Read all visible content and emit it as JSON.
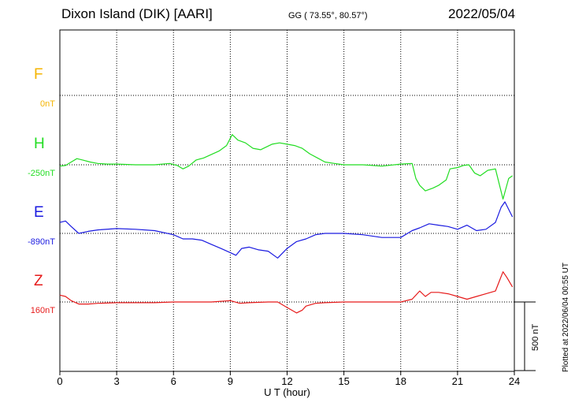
{
  "header": {
    "station": "Dixon Island (DIK)  [AARI]",
    "coords": "GG ( 73.55°,  80.57°)",
    "date": "2022/05/04"
  },
  "footer": {
    "plotted": "Plotted at 2022/06/04 00:55 UT"
  },
  "chart_data": {
    "type": "line",
    "xlabel": "U T (hour)",
    "xlim": [
      0,
      24
    ],
    "x_ticks": [
      "0",
      "3",
      "6",
      "9",
      "12",
      "15",
      "18",
      "21",
      "24"
    ],
    "scale_bar_label": "500 nT",
    "scale_nT": 500,
    "components": [
      {
        "name": "F",
        "baseline_label": "0nT",
        "color": "#f5b400",
        "points": []
      },
      {
        "name": "H",
        "baseline_label": "-250nT",
        "color": "#22dd22",
        "points": [
          [
            0,
            -10
          ],
          [
            0.3,
            -5
          ],
          [
            0.6,
            20
          ],
          [
            0.9,
            45
          ],
          [
            1.2,
            35
          ],
          [
            1.6,
            20
          ],
          [
            2.0,
            10
          ],
          [
            2.5,
            5
          ],
          [
            3.0,
            5
          ],
          [
            4.0,
            0
          ],
          [
            5.0,
            0
          ],
          [
            5.8,
            10
          ],
          [
            6.2,
            -5
          ],
          [
            6.5,
            -30
          ],
          [
            6.8,
            -10
          ],
          [
            7.2,
            35
          ],
          [
            7.6,
            50
          ],
          [
            8.0,
            75
          ],
          [
            8.4,
            100
          ],
          [
            8.8,
            140
          ],
          [
            9.1,
            220
          ],
          [
            9.4,
            180
          ],
          [
            9.8,
            160
          ],
          [
            10.2,
            120
          ],
          [
            10.6,
            110
          ],
          [
            11.2,
            150
          ],
          [
            11.6,
            160
          ],
          [
            12.0,
            150
          ],
          [
            12.4,
            140
          ],
          [
            12.8,
            120
          ],
          [
            13.2,
            80
          ],
          [
            13.6,
            50
          ],
          [
            14.0,
            20
          ],
          [
            14.5,
            10
          ],
          [
            15.0,
            0
          ],
          [
            16.0,
            0
          ],
          [
            17.0,
            -10
          ],
          [
            18.0,
            5
          ],
          [
            18.6,
            10
          ],
          [
            18.8,
            -100
          ],
          [
            19.0,
            -150
          ],
          [
            19.3,
            -190
          ],
          [
            19.7,
            -170
          ],
          [
            20.0,
            -150
          ],
          [
            20.4,
            -110
          ],
          [
            20.6,
            -30
          ],
          [
            21.0,
            -20
          ],
          [
            21.3,
            -5
          ],
          [
            21.6,
            0
          ],
          [
            21.9,
            -60
          ],
          [
            22.2,
            -80
          ],
          [
            22.6,
            -40
          ],
          [
            23.0,
            -30
          ],
          [
            23.4,
            -250
          ],
          [
            23.7,
            -100
          ],
          [
            23.9,
            -80
          ]
        ]
      },
      {
        "name": "E",
        "baseline_label": "-890nT",
        "color": "#1a1ae0",
        "points": [
          [
            0,
            80
          ],
          [
            0.3,
            90
          ],
          [
            0.6,
            50
          ],
          [
            1.0,
            0
          ],
          [
            1.5,
            15
          ],
          [
            2.0,
            25
          ],
          [
            3.0,
            35
          ],
          [
            4.0,
            30
          ],
          [
            5.0,
            20
          ],
          [
            6.0,
            -10
          ],
          [
            6.5,
            -40
          ],
          [
            7.0,
            -40
          ],
          [
            7.5,
            -50
          ],
          [
            8.0,
            -80
          ],
          [
            8.5,
            -110
          ],
          [
            9.0,
            -140
          ],
          [
            9.3,
            -160
          ],
          [
            9.6,
            -110
          ],
          [
            10.0,
            -100
          ],
          [
            10.5,
            -120
          ],
          [
            11.0,
            -130
          ],
          [
            11.5,
            -180
          ],
          [
            12.0,
            -110
          ],
          [
            12.5,
            -60
          ],
          [
            13.0,
            -40
          ],
          [
            13.5,
            -10
          ],
          [
            14.0,
            0
          ],
          [
            15.0,
            0
          ],
          [
            16.0,
            -10
          ],
          [
            17.0,
            -30
          ],
          [
            18.0,
            -30
          ],
          [
            18.6,
            20
          ],
          [
            19.0,
            40
          ],
          [
            19.5,
            70
          ],
          [
            20.0,
            60
          ],
          [
            20.5,
            50
          ],
          [
            21.0,
            30
          ],
          [
            21.5,
            60
          ],
          [
            22.0,
            20
          ],
          [
            22.5,
            30
          ],
          [
            23.0,
            80
          ],
          [
            23.3,
            190
          ],
          [
            23.5,
            230
          ],
          [
            23.9,
            120
          ]
        ]
      },
      {
        "name": "Z",
        "baseline_label": "160nT",
        "color": "#e61a1a",
        "points": [
          [
            0,
            50
          ],
          [
            0.3,
            40
          ],
          [
            0.6,
            10
          ],
          [
            1.0,
            -15
          ],
          [
            1.5,
            -15
          ],
          [
            2.0,
            -10
          ],
          [
            3.0,
            -5
          ],
          [
            5.0,
            -5
          ],
          [
            6.0,
            0
          ],
          [
            7.0,
            0
          ],
          [
            8.0,
            0
          ],
          [
            9.0,
            10
          ],
          [
            9.5,
            -10
          ],
          [
            10.0,
            -5
          ],
          [
            11.0,
            0
          ],
          [
            11.5,
            0
          ],
          [
            12.0,
            -40
          ],
          [
            12.5,
            -80
          ],
          [
            12.8,
            -60
          ],
          [
            13.0,
            -30
          ],
          [
            13.5,
            -10
          ],
          [
            14.0,
            -5
          ],
          [
            15.0,
            0
          ],
          [
            17.0,
            0
          ],
          [
            18.0,
            0
          ],
          [
            18.6,
            20
          ],
          [
            19.0,
            80
          ],
          [
            19.3,
            40
          ],
          [
            19.6,
            70
          ],
          [
            20.0,
            70
          ],
          [
            20.5,
            60
          ],
          [
            21.0,
            40
          ],
          [
            21.5,
            20
          ],
          [
            22.0,
            40
          ],
          [
            22.5,
            60
          ],
          [
            23.0,
            80
          ],
          [
            23.4,
            220
          ],
          [
            23.6,
            180
          ],
          [
            23.9,
            110
          ]
        ]
      }
    ]
  }
}
